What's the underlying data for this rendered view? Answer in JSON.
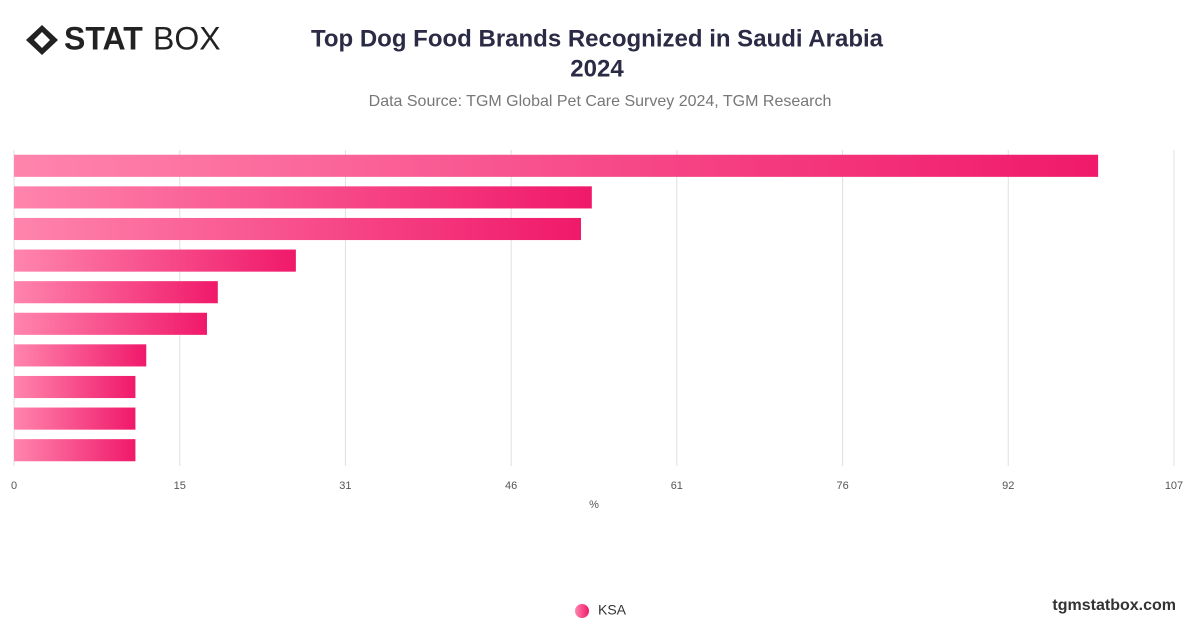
{
  "logo": {
    "bold": "STAT",
    "light": "BOX"
  },
  "footer": "tgmstatbox.com",
  "chart_data": {
    "type": "barh",
    "title": [
      "Top Dog Food Brands Recognized in Saudi Arabia",
      "2024"
    ],
    "subtitle": "Data Source: TGM Global Pet Care Survey 2024, TGM Research",
    "xlabel": "%",
    "categories": [
      null,
      null,
      null,
      null,
      null,
      null,
      null,
      null,
      null,
      null
    ],
    "series": [
      {
        "name": "KSA",
        "color": "#f0196a",
        "values": [
          100,
          53.3,
          52.3,
          26,
          18.8,
          17.8,
          12.2,
          11.2,
          11.2,
          11.2
        ]
      }
    ],
    "xlim": [
      0,
      107
    ],
    "xticks": [
      0,
      {
        "value": 15.29,
        "label": "15"
      },
      {
        "value": 30.57,
        "label": "31"
      },
      {
        "value": 45.86,
        "label": "46"
      },
      {
        "value": 61.14,
        "label": "61"
      },
      {
        "value": 76.43,
        "label": "76"
      },
      {
        "value": 91.71,
        "label": "92"
      },
      107
    ],
    "grid": true,
    "legend": "bottom"
  }
}
